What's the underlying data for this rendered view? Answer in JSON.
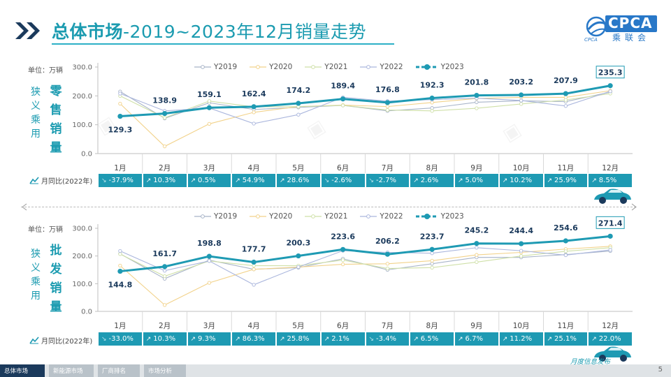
{
  "title": {
    "bold": "总体市场",
    "rest": "-2019~2023年12月销量走势"
  },
  "logo": {
    "brand": "CPCA",
    "sub": "乘联会",
    "caption": "CPCA"
  },
  "units": {
    "text": "单位：万辆"
  },
  "legend": [
    "Y2019",
    "Y2020",
    "Y2021",
    "Y2022",
    "Y2023"
  ],
  "series_colors": {
    "Y2019": "#a8b4c8",
    "Y2020": "#f2d28a",
    "Y2021": "#cfe0a8",
    "Y2022": "#aab6dd",
    "Y2023": "#1e9ab3"
  },
  "side": {
    "left_top": [
      "狭",
      "义",
      "乘",
      "用",
      "车"
    ],
    "big_top": [
      "零",
      "售",
      "销",
      "量"
    ],
    "left_bottom": [
      "狭",
      "义",
      "乘",
      "用",
      "车"
    ],
    "big_bottom": [
      "批",
      "发",
      "销",
      "量"
    ]
  },
  "yoy_label": "月同比(2022年)",
  "footer": {
    "tabs": [
      "总体市场",
      "新能源市场",
      "厂商排名",
      "市场分析"
    ],
    "page": "5",
    "note": "月度信息发布"
  },
  "chart_data": [
    {
      "type": "line",
      "ylabel": "单位：万辆",
      "ylim": [
        0,
        300
      ],
      "yticks": [
        "0.0",
        "100.0",
        "200.0",
        "300.0"
      ],
      "categories": [
        "1月",
        "2月",
        "3月",
        "4月",
        "5月",
        "6月",
        "7月",
        "8月",
        "9月",
        "10月",
        "11月",
        "12月"
      ],
      "series": [
        {
          "name": "Y2019",
          "values": [
            215,
            122,
            176,
            153,
            160,
            167,
            148,
            158,
            178,
            183,
            180,
            213
          ]
        },
        {
          "name": "Y2020",
          "values": [
            173,
            25,
            103,
            143,
            163,
            168,
            163,
            177,
            191,
            195,
            195,
            218
          ]
        },
        {
          "name": "Y2021",
          "values": [
            200,
            124,
            182,
            162,
            163,
            167,
            151,
            148,
            157,
            172,
            186,
            208
          ]
        },
        {
          "name": "Y2022",
          "values": [
            208,
            148,
            158,
            104,
            135,
            195,
            182,
            187,
            192,
            184,
            165,
            216
          ]
        },
        {
          "name": "Y2023",
          "values": [
            129.3,
            138.9,
            159.1,
            162.4,
            174.2,
            189.4,
            176.8,
            192.3,
            201.8,
            203.2,
            207.9,
            235.3
          ]
        }
      ],
      "data_labels": [
        "129.3",
        "138.9",
        "159.1",
        "162.4",
        "174.2",
        "189.4",
        "176.8",
        "192.3",
        "201.8",
        "203.2",
        "207.9",
        "235.3"
      ],
      "yoy": [
        {
          "text": "-37.9%",
          "dir": "down"
        },
        {
          "text": "10.3%",
          "dir": "up"
        },
        {
          "text": "0.5%",
          "dir": "up"
        },
        {
          "text": "54.9%",
          "dir": "up"
        },
        {
          "text": "28.6%",
          "dir": "up"
        },
        {
          "text": "-2.6%",
          "dir": "down"
        },
        {
          "text": "-2.7%",
          "dir": "down"
        },
        {
          "text": "2.6%",
          "dir": "up"
        },
        {
          "text": "5.0%",
          "dir": "up"
        },
        {
          "text": "10.2%",
          "dir": "up"
        },
        {
          "text": "25.9%",
          "dir": "up"
        },
        {
          "text": "8.5%",
          "dir": "up"
        }
      ]
    },
    {
      "type": "line",
      "ylabel": "单位：万辆",
      "ylim": [
        0,
        300
      ],
      "yticks": [
        "0.0",
        "100.0",
        "200.0",
        "300.0"
      ],
      "categories": [
        "1月",
        "2月",
        "3月",
        "4月",
        "5月",
        "6月",
        "7月",
        "8月",
        "9月",
        "10月",
        "11月",
        "12月"
      ],
      "series": [
        {
          "name": "Y2019",
          "values": [
            208,
            118,
            185,
            152,
            158,
            190,
            150,
            172,
            195,
            195,
            205,
            218
          ]
        },
        {
          "name": "Y2020",
          "values": [
            165,
            23,
            103,
            152,
            160,
            170,
            172,
            183,
            204,
            213,
            225,
            235
          ]
        },
        {
          "name": "Y2021",
          "values": [
            207,
            127,
            182,
            165,
            165,
            185,
            155,
            158,
            178,
            200,
            217,
            230
          ]
        },
        {
          "name": "Y2022",
          "values": [
            218,
            147,
            182,
            96,
            160,
            219,
            213,
            210,
            230,
            219,
            203,
            222
          ]
        },
        {
          "name": "Y2023",
          "values": [
            144.8,
            161.7,
            198.8,
            177.7,
            200.3,
            223.6,
            206.2,
            223.7,
            245.2,
            244.4,
            254.6,
            271.4
          ]
        }
      ],
      "data_labels": [
        "144.8",
        "161.7",
        "198.8",
        "177.7",
        "200.3",
        "223.6",
        "206.2",
        "223.7",
        "245.2",
        "244.4",
        "254.6",
        "271.4"
      ],
      "yoy": [
        {
          "text": "-33.0%",
          "dir": "down"
        },
        {
          "text": "10.3%",
          "dir": "up"
        },
        {
          "text": "9.3%",
          "dir": "up"
        },
        {
          "text": "86.3%",
          "dir": "up"
        },
        {
          "text": "25.8%",
          "dir": "up"
        },
        {
          "text": "2.1%",
          "dir": "up"
        },
        {
          "text": "-3.4%",
          "dir": "down"
        },
        {
          "text": "6.5%",
          "dir": "up"
        },
        {
          "text": "6.7%",
          "dir": "up"
        },
        {
          "text": "11.2%",
          "dir": "up"
        },
        {
          "text": "25.1%",
          "dir": "up"
        },
        {
          "text": "22.0%",
          "dir": "up"
        }
      ]
    }
  ]
}
